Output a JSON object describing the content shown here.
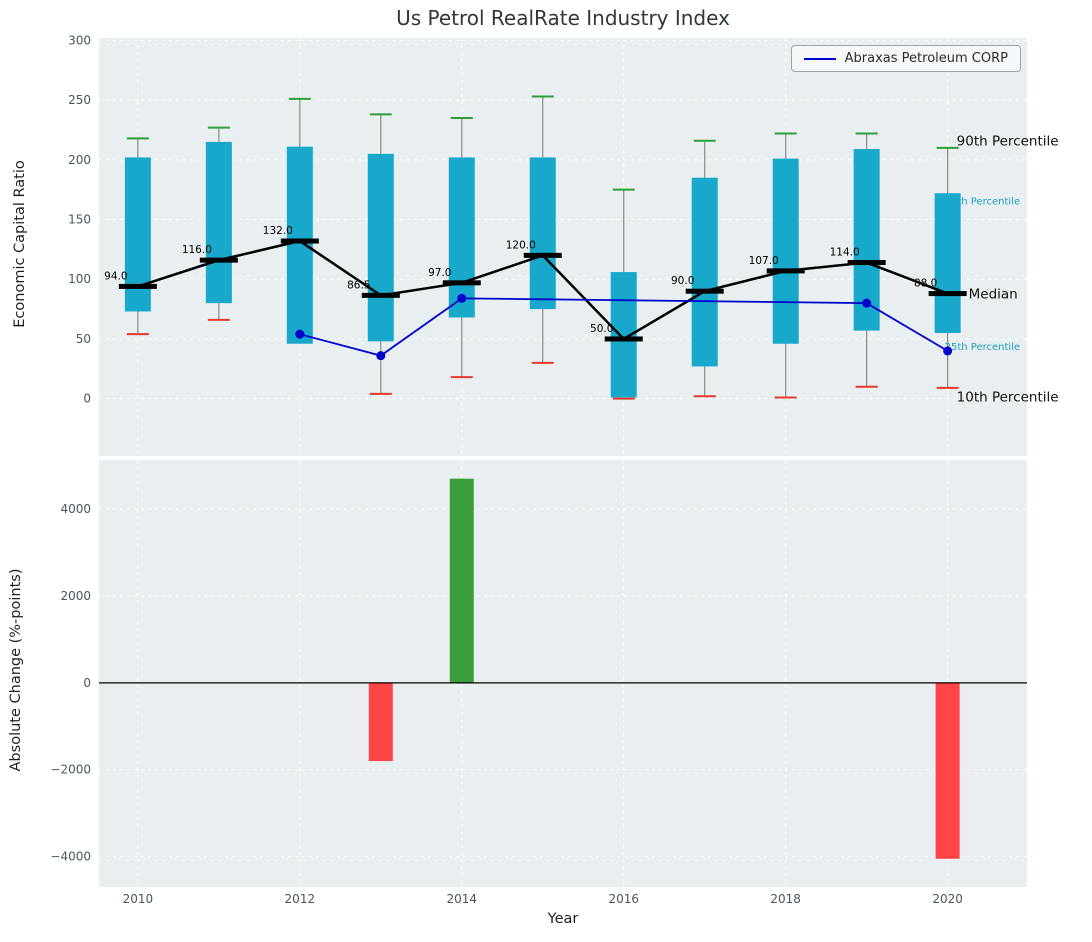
{
  "title": "Us Petrol RealRate Industry Index",
  "legend": {
    "label": "Abraxas Petroleum CORP"
  },
  "axes": {
    "top_ylabel": "Economic Capital Ratio",
    "bottom_ylabel": "Absolute Change (%-points)",
    "xlabel": "Year"
  },
  "colors": {
    "axes_bg": "#e9eef0",
    "grid": "#ffffff",
    "box_fill": "#17a8cb",
    "whisker": "#8a8a8a",
    "cap_high": "#2e9e38",
    "cap_low": "#e8372c",
    "median": "#000000",
    "company_line": "#0000cd",
    "bar_positive": "#3a9e3a",
    "bar_negative": "#ff4545",
    "tick_label": "#49555e",
    "annotation_dark": "#111111",
    "annotation_teal": "#1b9fc4",
    "title_color": "#32373c"
  },
  "chart_data": [
    {
      "type": "boxplot-line",
      "title": "Us Petrol RealRate Industry Index",
      "ylabel": "Economic Capital Ratio",
      "ylim": [
        -48,
        302
      ],
      "yticks": [
        0,
        50,
        100,
        150,
        200,
        250,
        300
      ],
      "xlim": [
        2009.52,
        2020.98
      ],
      "xticks": [
        2010,
        2012,
        2014,
        2016,
        2018,
        2020
      ],
      "years": [
        2010,
        2011,
        2012,
        2013,
        2014,
        2015,
        2016,
        2017,
        2018,
        2019,
        2020
      ],
      "p90": [
        218,
        227,
        251,
        238,
        235,
        253,
        175,
        216,
        222,
        222,
        210
      ],
      "p75": [
        202,
        215,
        211,
        205,
        202,
        202,
        106,
        185,
        201,
        209,
        172
      ],
      "median": [
        94,
        116,
        132,
        86.5,
        97,
        120,
        50,
        90,
        107,
        114,
        88
      ],
      "p25": [
        73,
        80,
        46,
        48,
        68,
        75,
        1,
        27,
        46,
        57,
        55
      ],
      "p10": [
        54,
        66,
        53,
        4,
        18,
        30,
        0,
        2,
        1,
        10,
        9
      ],
      "median_labels": [
        "94.0",
        "116.0",
        "132.0",
        "86.5",
        "97.0",
        "120.0",
        "50.0",
        "90.0",
        "107.0",
        "114.0",
        "88.0"
      ],
      "company_series": {
        "name": "Abraxas Petroleum CORP",
        "x": [
          2012,
          2013,
          2014,
          2019,
          2020
        ],
        "y": [
          54,
          36,
          84,
          80,
          40
        ]
      },
      "annotations": [
        {
          "text": "90th Percentile",
          "value": 216,
          "style": "dark",
          "layer": "top"
        },
        {
          "text": "75th Percentile",
          "value": 166,
          "style": "teal",
          "layer": "under"
        },
        {
          "text": "Median",
          "value": 88,
          "style": "dark",
          "layer": "top"
        },
        {
          "text": "25th Percentile",
          "value": 44,
          "style": "teal",
          "layer": "under"
        },
        {
          "text": "10th Percentile",
          "value": 2,
          "style": "dark",
          "layer": "top"
        }
      ]
    },
    {
      "type": "bar",
      "ylabel": "Absolute Change (%-points)",
      "xlabel": "Year",
      "ylim": [
        -4700,
        5130
      ],
      "yticks": [
        -4000,
        -2000,
        0,
        2000,
        4000
      ],
      "xticks": [
        2010,
        2012,
        2014,
        2016,
        2018,
        2020
      ],
      "bars": [
        {
          "year": 2013,
          "value": -1800
        },
        {
          "year": 2014,
          "value": 4700
        },
        {
          "year": 2020,
          "value": -4050
        }
      ]
    }
  ]
}
